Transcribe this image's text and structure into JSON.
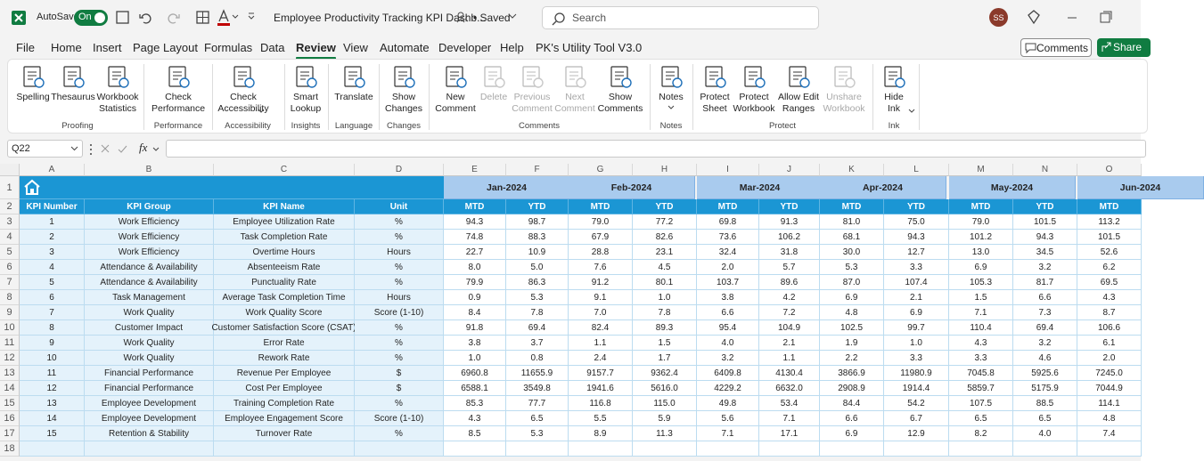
{
  "titlebar": {
    "autosave": "AutoSave",
    "toggle": "On",
    "filename": "Employee Productivity Tracking KPI Dashb...",
    "status": "• Saved",
    "search": "Search",
    "user": "SS"
  },
  "menu": {
    "tabs": [
      "File",
      "Home",
      "Insert",
      "Page Layout",
      "Formulas",
      "Data",
      "Review",
      "View",
      "Automate",
      "Developer",
      "Help",
      "PK's Utility Tool V3.0"
    ],
    "active_tab": 6,
    "comments": "Comments",
    "share": "Share"
  },
  "ribbon": {
    "groups": [
      {
        "name": "Proofing",
        "buttons": [
          {
            "label": "Spelling"
          },
          {
            "label": "Thesaurus"
          },
          {
            "label": "Workbook\nStatistics"
          }
        ]
      },
      {
        "name": "Performance",
        "buttons": [
          {
            "label": "Check\nPerformance"
          }
        ]
      },
      {
        "name": "Accessibility",
        "buttons": [
          {
            "label": "Check\nAccessibility",
            "dropdown": true
          }
        ]
      },
      {
        "name": "Insights",
        "buttons": [
          {
            "label": "Smart\nLookup"
          }
        ]
      },
      {
        "name": "Language",
        "buttons": [
          {
            "label": "Translate"
          }
        ]
      },
      {
        "name": "Changes",
        "buttons": [
          {
            "label": "Show\nChanges"
          }
        ]
      },
      {
        "name": "Comments",
        "buttons": [
          {
            "label": "New\nComment"
          },
          {
            "label": "Delete",
            "disabled": true
          },
          {
            "label": "Previous\nComment",
            "disabled": true
          },
          {
            "label": "Next\nComment",
            "disabled": true
          },
          {
            "label": "Show\nComments"
          }
        ]
      },
      {
        "name": "Notes",
        "buttons": [
          {
            "label": "Notes",
            "dropdown": true
          }
        ]
      },
      {
        "name": "Protect",
        "buttons": [
          {
            "label": "Protect\nSheet"
          },
          {
            "label": "Protect\nWorkbook"
          },
          {
            "label": "Allow Edit\nRanges"
          },
          {
            "label": "Unshare\nWorkbook",
            "disabled": true
          }
        ]
      },
      {
        "name": "Ink",
        "buttons": [
          {
            "label": "Hide\nInk",
            "dropdown": true
          }
        ]
      }
    ]
  },
  "formula_bar": {
    "name_box": "Q22",
    "fx": "fx"
  },
  "sheet": {
    "columns": [
      "A",
      "B",
      "C",
      "D",
      "E",
      "F",
      "G",
      "H",
      "I",
      "J",
      "K",
      "L",
      "M",
      "N",
      "O"
    ],
    "rows": [
      1,
      2,
      3,
      4,
      5,
      6,
      7,
      8,
      9,
      10,
      11,
      12,
      13,
      14,
      15,
      16,
      17,
      18
    ],
    "months": [
      "Jan-2024",
      "Feb-2024",
      "Mar-2024",
      "Apr-2024",
      "May-2024",
      "Jun-2024"
    ],
    "headers": [
      "KPI Number",
      "KPI Group",
      "KPI Name",
      "Unit"
    ],
    "subheaders": [
      "MTD",
      "YTD"
    ],
    "data": [
      [
        "1",
        "Work Efficiency",
        "Employee Utilization Rate",
        "%",
        "94.3",
        "98.7",
        "79.0",
        "77.2",
        "69.8",
        "91.3",
        "81.0",
        "75.0",
        "79.0",
        "101.5",
        "113.2"
      ],
      [
        "2",
        "Work Efficiency",
        "Task Completion Rate",
        "%",
        "74.8",
        "88.3",
        "67.9",
        "82.6",
        "73.6",
        "106.2",
        "68.1",
        "94.3",
        "101.2",
        "94.3",
        "101.5"
      ],
      [
        "3",
        "Work Efficiency",
        "Overtime Hours",
        "Hours",
        "22.7",
        "10.9",
        "28.8",
        "23.1",
        "32.4",
        "31.8",
        "30.0",
        "12.7",
        "13.0",
        "34.5",
        "52.6"
      ],
      [
        "4",
        "Attendance & Availability",
        "Absenteeism Rate",
        "%",
        "8.0",
        "5.0",
        "7.6",
        "4.5",
        "2.0",
        "5.7",
        "5.3",
        "3.3",
        "6.9",
        "3.2",
        "6.2"
      ],
      [
        "5",
        "Attendance & Availability",
        "Punctuality Rate",
        "%",
        "79.9",
        "86.3",
        "91.2",
        "80.1",
        "103.7",
        "89.6",
        "87.0",
        "107.4",
        "105.3",
        "81.7",
        "69.5"
      ],
      [
        "6",
        "Task Management",
        "Average Task Completion Time",
        "Hours",
        "0.9",
        "5.3",
        "9.1",
        "1.0",
        "3.8",
        "4.2",
        "6.9",
        "2.1",
        "1.5",
        "6.6",
        "4.3"
      ],
      [
        "7",
        "Work Quality",
        "Work Quality Score",
        "Score (1-10)",
        "8.4",
        "7.8",
        "7.0",
        "7.8",
        "6.6",
        "7.2",
        "4.8",
        "6.9",
        "7.1",
        "7.3",
        "8.7"
      ],
      [
        "8",
        "Customer Impact",
        "Customer Satisfaction Score (CSAT)",
        "%",
        "91.8",
        "69.4",
        "82.4",
        "89.3",
        "95.4",
        "104.9",
        "102.5",
        "99.7",
        "110.4",
        "69.4",
        "106.6"
      ],
      [
        "9",
        "Work Quality",
        "Error Rate",
        "%",
        "3.8",
        "3.7",
        "1.1",
        "1.5",
        "4.0",
        "2.1",
        "1.9",
        "1.0",
        "4.3",
        "3.2",
        "6.1"
      ],
      [
        "10",
        "Work Quality",
        "Rework Rate",
        "%",
        "1.0",
        "0.8",
        "2.4",
        "1.7",
        "3.2",
        "1.1",
        "2.2",
        "3.3",
        "3.3",
        "4.6",
        "2.0"
      ],
      [
        "11",
        "Financial Performance",
        "Revenue Per Employee",
        "$",
        "6960.8",
        "11655.9",
        "9157.7",
        "9362.4",
        "6409.8",
        "4130.4",
        "3866.9",
        "11980.9",
        "7045.8",
        "5925.6",
        "7245.0"
      ],
      [
        "12",
        "Financial Performance",
        "Cost Per Employee",
        "$",
        "6588.1",
        "3549.8",
        "1941.6",
        "5616.0",
        "4229.2",
        "6632.0",
        "2908.9",
        "1914.4",
        "5859.7",
        "5175.9",
        "7044.9"
      ],
      [
        "13",
        "Employee Development",
        "Training Completion Rate",
        "%",
        "85.3",
        "77.7",
        "116.8",
        "115.0",
        "49.8",
        "53.4",
        "84.4",
        "54.2",
        "107.5",
        "88.5",
        "114.1"
      ],
      [
        "14",
        "Employee Development",
        "Employee Engagement Score",
        "Score (1-10)",
        "4.3",
        "6.5",
        "5.5",
        "5.9",
        "5.6",
        "7.1",
        "6.6",
        "6.7",
        "6.5",
        "6.5",
        "4.8"
      ],
      [
        "15",
        "Retention & Stability",
        "Turnover Rate",
        "%",
        "8.5",
        "5.3",
        "8.9",
        "11.3",
        "7.1",
        "17.1",
        "6.9",
        "12.9",
        "8.2",
        "4.0",
        "7.4"
      ]
    ]
  }
}
